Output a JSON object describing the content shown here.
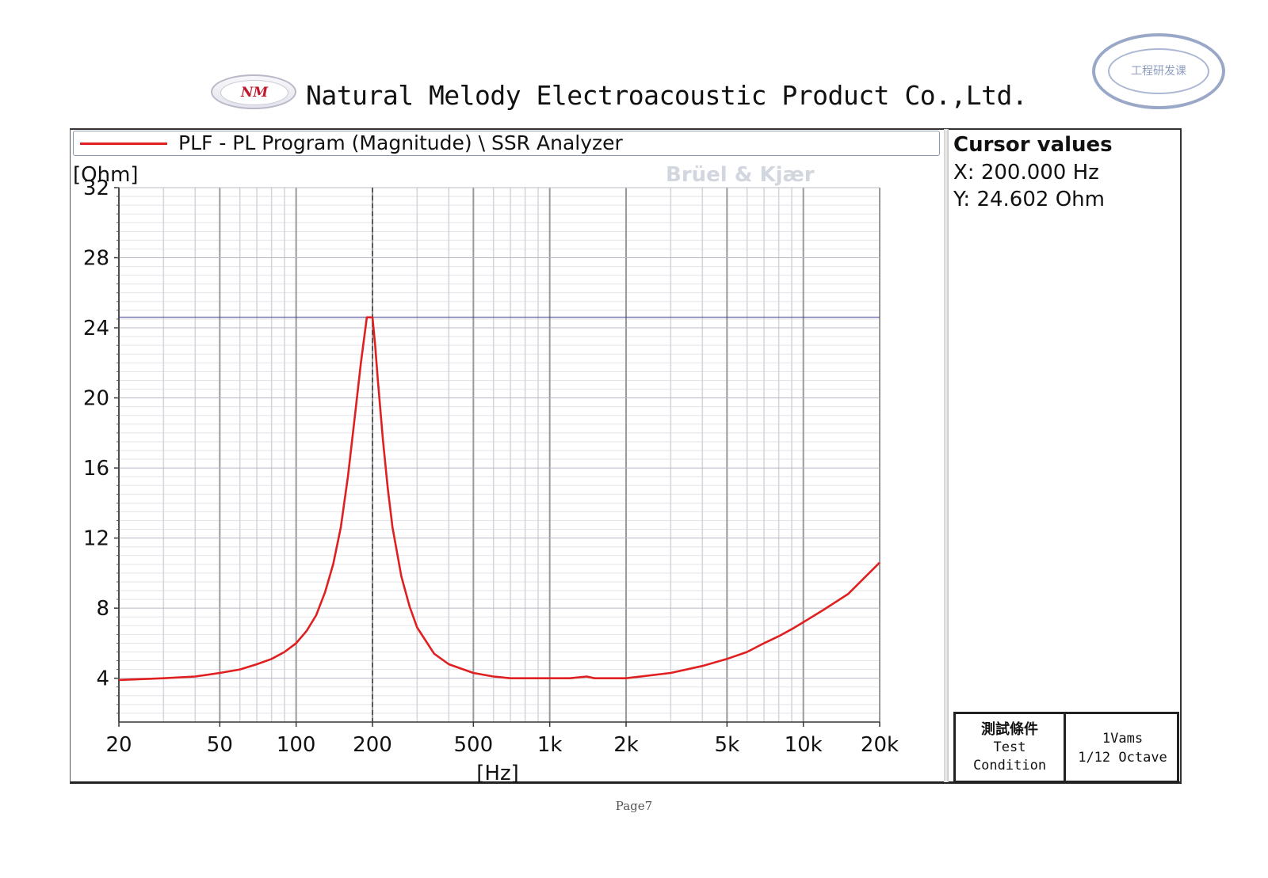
{
  "header": {
    "logo_text": "NM",
    "company": "Natural Melody Electroacoustic Product Co.,Ltd.",
    "stamp_text": "工程研发课"
  },
  "chart_data": {
    "type": "line",
    "legend": "PLF - PL Program (Magnitude) \\ SSR Analyzer",
    "watermark": "Brüel & Kjær",
    "ylabel": "[Ohm]",
    "xlabel": "[Hz]",
    "xscale": "log",
    "xlim": [
      20,
      20000
    ],
    "ylim": [
      1.5,
      32
    ],
    "xticks": [
      20,
      50,
      100,
      200,
      500,
      1000,
      2000,
      5000,
      10000,
      20000
    ],
    "xtick_labels": [
      "20",
      "50",
      "100",
      "200",
      "500",
      "1k",
      "2k",
      "5k",
      "10k",
      "20k"
    ],
    "yticks": [
      4,
      8,
      12,
      16,
      20,
      24,
      28,
      32
    ],
    "ytick_labels": [
      "4",
      "8",
      "12",
      "16",
      "20",
      "24",
      "28",
      "32"
    ],
    "grid": true,
    "cursor": {
      "x": 200,
      "y": 24.602
    },
    "series": [
      {
        "name": "PLF - PL Program (Magnitude) \\ SSR Analyzer",
        "color": "#e02020",
        "x": [
          20,
          30,
          40,
          50,
          60,
          70,
          80,
          90,
          100,
          110,
          120,
          130,
          140,
          150,
          160,
          170,
          180,
          190,
          195,
          200,
          205,
          210,
          220,
          230,
          240,
          260,
          280,
          300,
          350,
          400,
          500,
          600,
          700,
          800,
          900,
          1000,
          1200,
          1400,
          1500,
          1700,
          2000,
          3000,
          4000,
          5000,
          6000,
          7000,
          8000,
          9000,
          10000,
          12000,
          15000,
          20000
        ],
        "y": [
          3.9,
          4.0,
          4.1,
          4.3,
          4.5,
          4.8,
          5.1,
          5.5,
          6.0,
          6.7,
          7.6,
          8.9,
          10.5,
          12.6,
          15.5,
          18.8,
          22.0,
          24.6,
          24.6,
          24.6,
          23.0,
          21.0,
          17.6,
          14.8,
          12.6,
          9.8,
          8.1,
          6.9,
          5.4,
          4.8,
          4.3,
          4.1,
          4.0,
          4.0,
          4.0,
          4.0,
          4.0,
          4.1,
          4.0,
          4.0,
          4.0,
          4.3,
          4.7,
          5.1,
          5.5,
          6.0,
          6.4,
          6.8,
          7.2,
          7.9,
          8.8,
          10.6
        ]
      }
    ]
  },
  "cursor_panel": {
    "title": "Cursor values",
    "x": "X: 200.000 Hz",
    "y": "Y: 24.602 Ohm"
  },
  "test_condition": {
    "label_zh": "測試條件",
    "label_en_1": "Test",
    "label_en_2": "Condition",
    "value_1": "1Vams",
    "value_2": "1/12 Octave"
  },
  "footer": {
    "page": "Page7"
  }
}
